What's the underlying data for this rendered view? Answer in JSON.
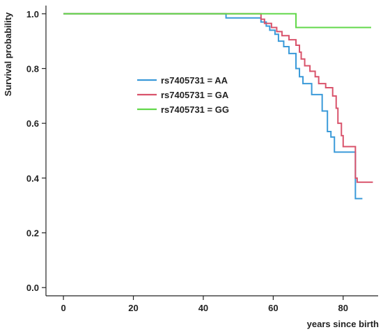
{
  "chart_data": {
    "type": "line",
    "step": true,
    "xlabel": "years since birth",
    "ylabel": "Survival probability",
    "xlim": [
      -5,
      90
    ],
    "ylim": [
      -0.03,
      1.03
    ],
    "xticks": [
      0,
      20,
      40,
      60,
      80
    ],
    "xtick_labels": [
      "0",
      "20",
      "40",
      "60",
      "80"
    ],
    "yticks": [
      0.0,
      0.2,
      0.4,
      0.6,
      0.8,
      1.0
    ],
    "ytick_labels": [
      "0.0",
      "0.2",
      "0.4",
      "0.6",
      "0.8",
      "1.0"
    ],
    "grid": false,
    "legend_position": "center-left",
    "series": [
      {
        "name": "rs7405731 = AA",
        "color": "#3a9ad9",
        "x": [
          0,
          46.5,
          56.5,
          58,
          59,
          60.5,
          61.5,
          63,
          64.5,
          66.5,
          67.5,
          68.5,
          71,
          74,
          75.5,
          76.5,
          77.5,
          83.5,
          85.5
        ],
        "y": [
          1.0,
          0.985,
          0.97,
          0.955,
          0.94,
          0.925,
          0.9,
          0.88,
          0.855,
          0.8,
          0.77,
          0.745,
          0.705,
          0.645,
          0.57,
          0.55,
          0.495,
          0.325,
          0.325
        ]
      },
      {
        "name": "rs7405731 = GA",
        "color": "#d9536b",
        "x": [
          0,
          56.5,
          57.5,
          59.5,
          61,
          62.5,
          64.5,
          66.5,
          67.5,
          68,
          69,
          70.5,
          72,
          73,
          75,
          77,
          78,
          78.5,
          79.5,
          80,
          83.5,
          84,
          88.5
        ],
        "y": [
          1.0,
          0.98,
          0.965,
          0.95,
          0.935,
          0.92,
          0.905,
          0.885,
          0.86,
          0.835,
          0.81,
          0.79,
          0.77,
          0.745,
          0.73,
          0.7,
          0.655,
          0.6,
          0.555,
          0.515,
          0.4,
          0.385,
          0.385
        ]
      },
      {
        "name": "rs7405731 = GG",
        "color": "#62d84a",
        "x": [
          0,
          66.5,
          88
        ],
        "y": [
          1.0,
          0.95,
          0.95
        ]
      }
    ]
  }
}
